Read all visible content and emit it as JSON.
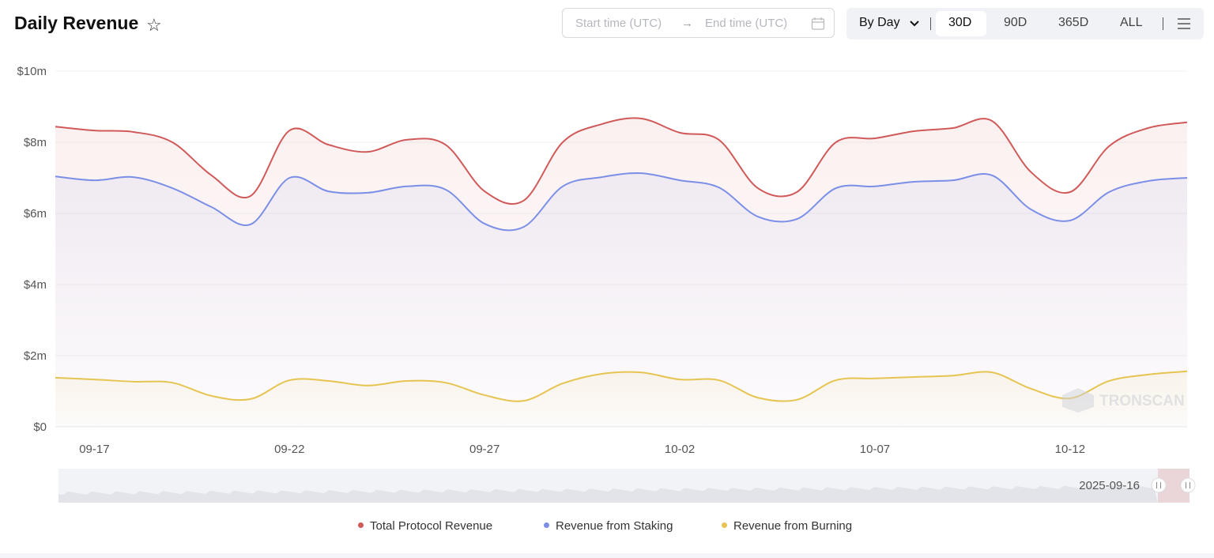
{
  "header": {
    "title": "Daily Revenue",
    "star_icon": "star-outline-icon",
    "start_placeholder": "Start time (UTC)",
    "arrow": "→",
    "end_placeholder": "End time (UTC)",
    "calendar_icon": "calendar-icon",
    "granularity": "By Day",
    "ranges": [
      "30D",
      "90D",
      "365D",
      "ALL"
    ],
    "selected_range": "30D",
    "menu_icon": "menu-icon"
  },
  "slider": {
    "label": "2025-09-16"
  },
  "watermark": "TRONSCAN",
  "chart_data": {
    "type": "area",
    "title": "",
    "x": [
      "09-16",
      "09-17",
      "09-18",
      "09-19",
      "09-20",
      "09-21",
      "09-22",
      "09-23",
      "09-24",
      "09-25",
      "09-26",
      "09-27",
      "09-28",
      "09-29",
      "09-30",
      "10-01",
      "10-02",
      "10-03",
      "10-04",
      "10-05",
      "10-06",
      "10-07",
      "10-08",
      "10-09",
      "10-10",
      "10-11",
      "10-12",
      "10-13",
      "10-14",
      "10-15"
    ],
    "x_tick_labels": [
      "09-17",
      "09-22",
      "09-27",
      "10-02",
      "10-07",
      "10-12"
    ],
    "y_tick_labels": [
      "$0",
      "$2m",
      "$4m",
      "$6m",
      "$8m",
      "$10m"
    ],
    "ylim": [
      0,
      10
    ],
    "y_unit": "million USD",
    "grid": true,
    "legend_position": "bottom",
    "series": [
      {
        "name": "Total Protocol Revenue",
        "color": "#d05a5a",
        "values": [
          8.44,
          8.33,
          8.29,
          8.0,
          7.07,
          6.49,
          8.33,
          7.93,
          7.73,
          8.07,
          7.93,
          6.62,
          6.36,
          8.0,
          8.51,
          8.67,
          8.27,
          8.07,
          6.71,
          6.6,
          8.0,
          8.11,
          8.31,
          8.4,
          8.6,
          7.16,
          6.6,
          7.89,
          8.4,
          8.56
        ]
      },
      {
        "name": "Revenue from Staking",
        "color": "#7b8fe6",
        "values": [
          7.04,
          6.93,
          7.02,
          6.71,
          6.18,
          5.69,
          7.0,
          6.62,
          6.58,
          6.76,
          6.67,
          5.71,
          5.62,
          6.76,
          7.02,
          7.13,
          6.93,
          6.73,
          5.91,
          5.84,
          6.71,
          6.76,
          6.89,
          6.93,
          7.07,
          6.11,
          5.8,
          6.6,
          6.91,
          7.0
        ]
      },
      {
        "name": "Revenue from Burning",
        "color": "#e6c452",
        "values": [
          1.38,
          1.33,
          1.27,
          1.24,
          0.87,
          0.78,
          1.31,
          1.29,
          1.16,
          1.29,
          1.24,
          0.89,
          0.73,
          1.22,
          1.49,
          1.53,
          1.33,
          1.31,
          0.82,
          0.76,
          1.31,
          1.36,
          1.4,
          1.44,
          1.53,
          1.07,
          0.8,
          1.29,
          1.47,
          1.56
        ]
      }
    ]
  }
}
